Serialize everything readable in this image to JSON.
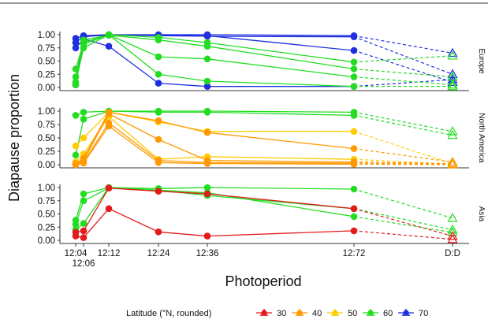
{
  "figure": {
    "y_axis_label": "Diapause proportion",
    "x_axis_label": "Photoperiod",
    "legend_title": "Latitude (°N, rounded)"
  },
  "legend": [
    {
      "label": "30",
      "color": "#e41a1c"
    },
    {
      "label": "40",
      "color": "#ff9900"
    },
    {
      "label": "50",
      "color": "#ffcc00"
    },
    {
      "label": "60",
      "color": "#22dd22"
    },
    {
      "label": "70",
      "color": "#1f2fe0"
    }
  ],
  "chart_data": {
    "type": "line",
    "x_ticks": [
      "12:04",
      "12:06",
      "12:12",
      "12:24",
      "12:36",
      "12:72",
      "D:D"
    ],
    "y_ticks": [
      "0.00",
      "0.25",
      "0.50",
      "0.75",
      "1.00"
    ],
    "ylim": [
      0,
      1
    ],
    "marker_solid": "circle (photoperiod treatments)",
    "marker_open": "triangle (D:D, dashed connector)",
    "panels": [
      {
        "strip": "Europe",
        "series": [
          {
            "lat": "70",
            "values": [
              0.93,
              0.98,
              1.0,
              1.0,
              1.0,
              0.98,
              0.65
            ]
          },
          {
            "lat": "70",
            "values": [
              0.85,
              0.96,
              1.0,
              0.98,
              0.97,
              0.96,
              0.25
            ]
          },
          {
            "lat": "70",
            "values": [
              0.75,
              0.92,
              0.78,
              0.08,
              0.02,
              0.02,
              0.15
            ]
          },
          {
            "lat": "70",
            "values": [
              0.05,
              0.97,
              0.99,
              0.99,
              0.98,
              0.7,
              0.1
            ]
          },
          {
            "lat": "60",
            "values": [
              0.35,
              0.85,
              1.0,
              0.95,
              0.85,
              0.48,
              0.6
            ]
          },
          {
            "lat": "60",
            "values": [
              0.2,
              0.9,
              0.99,
              0.9,
              0.78,
              0.35,
              0.2
            ]
          },
          {
            "lat": "60",
            "values": [
              0.1,
              0.75,
              1.0,
              0.58,
              0.54,
              0.2,
              0.05
            ]
          },
          {
            "lat": "60",
            "values": [
              0.05,
              0.82,
              1.0,
              0.25,
              0.12,
              0.02,
              0.02
            ]
          }
        ]
      },
      {
        "strip": "North America",
        "series": [
          {
            "lat": "60",
            "values": [
              0.92,
              0.98,
              1.0,
              1.0,
              1.0,
              0.98,
              0.62
            ]
          },
          {
            "lat": "60",
            "values": [
              0.18,
              0.85,
              1.0,
              0.98,
              0.98,
              0.92,
              0.55
            ]
          },
          {
            "lat": "50",
            "values": [
              0.35,
              0.5,
              0.98,
              0.8,
              0.62,
              0.62,
              0.02
            ]
          },
          {
            "lat": "50",
            "values": [
              0.05,
              0.2,
              0.9,
              0.1,
              0.15,
              0.1,
              0.01
            ]
          },
          {
            "lat": "40",
            "values": [
              0.02,
              0.12,
              0.98,
              0.82,
              0.6,
              0.3,
              0.05
            ]
          },
          {
            "lat": "40",
            "values": [
              0.01,
              0.08,
              0.95,
              0.47,
              0.08,
              0.05,
              0.02
            ]
          },
          {
            "lat": "40",
            "values": [
              0.0,
              0.05,
              0.78,
              0.08,
              0.04,
              0.03,
              0.01
            ]
          },
          {
            "lat": "40",
            "values": [
              0.0,
              0.03,
              0.72,
              0.04,
              0.02,
              0.01,
              0.0
            ]
          }
        ]
      },
      {
        "strip": "Asia",
        "series": [
          {
            "lat": "60",
            "values": [
              0.38,
              0.88,
              1.0,
              0.98,
              1.0,
              0.97,
              0.42
            ]
          },
          {
            "lat": "60",
            "values": [
              0.3,
              0.75,
              0.99,
              0.95,
              0.85,
              0.6,
              0.2
            ]
          },
          {
            "lat": "60",
            "values": [
              0.2,
              0.32,
              1.0,
              0.95,
              0.9,
              0.45,
              0.15
            ]
          },
          {
            "lat": "30",
            "values": [
              0.15,
              0.18,
              0.99,
              0.93,
              0.88,
              0.6,
              0.08
            ]
          },
          {
            "lat": "30",
            "values": [
              0.08,
              0.05,
              0.6,
              0.16,
              0.08,
              0.18,
              0.02
            ]
          }
        ]
      }
    ]
  }
}
